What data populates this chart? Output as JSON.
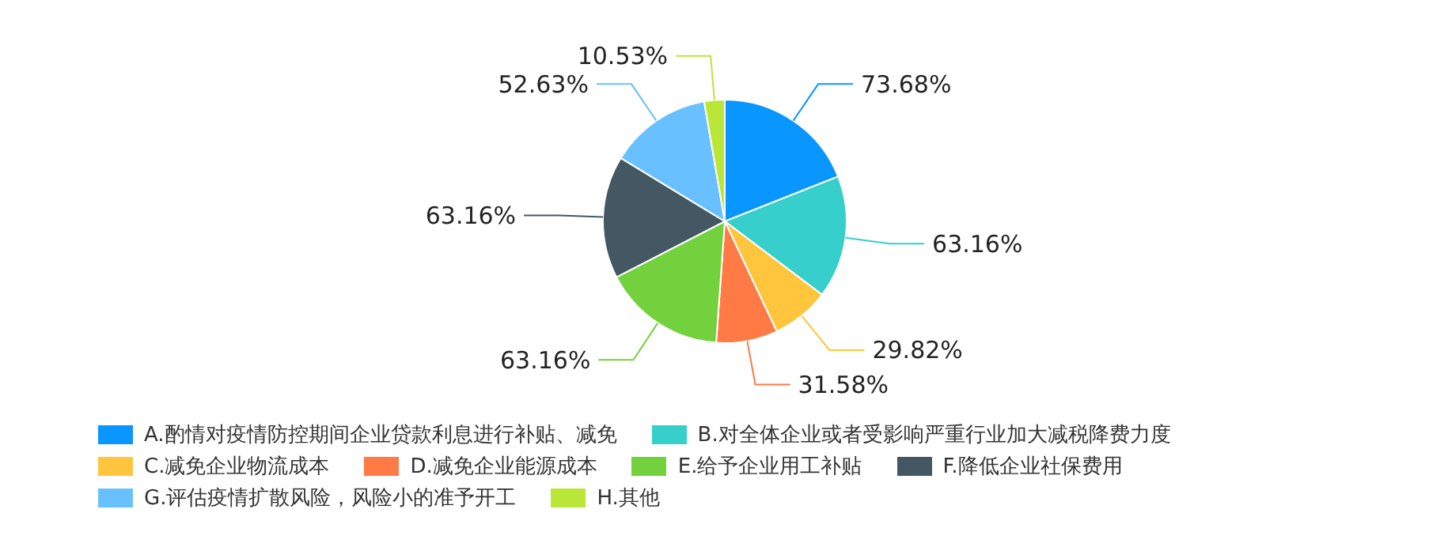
{
  "chart_data": {
    "type": "pie",
    "categories": [
      "A.酌情对疫情防控期间企业贷款利息进行补贴、减免",
      "B.对全体企业或者受影响严重行业加大减税降费力度",
      "C.减免企业物流成本",
      "D.减免企业能源成本",
      "E.给予企业用工补贴",
      "F.降低企业社保费用",
      "G.评估疫情扩散风险，风险小的准予开工",
      "H.其他"
    ],
    "values": [
      73.68,
      63.16,
      29.82,
      31.58,
      63.16,
      63.16,
      52.63,
      10.53
    ],
    "value_labels": [
      "73.68%",
      "63.16%",
      "29.82%",
      "31.58%",
      "63.16%",
      "63.16%",
      "52.63%",
      "10.53%"
    ],
    "colors": [
      "#0a96ff",
      "#36cfcb",
      "#ffc53d",
      "#ff7a45",
      "#73d13d",
      "#435863",
      "#69c0ff",
      "#bae637"
    ],
    "legend": "bottom"
  }
}
